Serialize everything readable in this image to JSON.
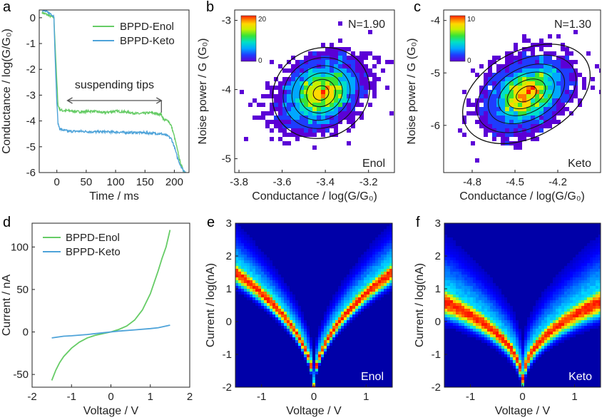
{
  "colors": {
    "enol": "#66cc66",
    "keto": "#4ea3d9",
    "axis": "#222222",
    "bracket": "#555555",
    "map_background": "#0000b4",
    "map_ridge": "#ff1a00",
    "heatmap_scale": [
      "#5b00d6",
      "#1f3cff",
      "#00a8ff",
      "#00e0c8",
      "#36e436",
      "#c8f000",
      "#ffd800",
      "#ff7a00",
      "#ff1e00"
    ]
  },
  "panels": {
    "a": {
      "letter": "a"
    },
    "b": {
      "letter": "b"
    },
    "c": {
      "letter": "c"
    },
    "d": {
      "letter": "d"
    },
    "e": {
      "letter": "e"
    },
    "f": {
      "letter": "f"
    }
  },
  "chart_data": [
    {
      "panel": "a",
      "type": "line",
      "xlabel": "Time / ms",
      "ylabel": "Conductance / log(G/G₀)",
      "xlim": [
        -30,
        225
      ],
      "ylim": [
        -6,
        0.3
      ],
      "xticks": [
        0,
        50,
        100,
        150,
        200
      ],
      "yticks": [
        0,
        -1,
        -2,
        -3,
        -4,
        -5,
        -6
      ],
      "legend_position": "top-right",
      "annotation": "suspending tips",
      "annotation_span": [
        18,
        178
      ],
      "series": [
        {
          "name": "BPPD-Enol",
          "x": [
            -25,
            -20,
            -10,
            -5,
            -3,
            0,
            2,
            5,
            10,
            20,
            40,
            60,
            80,
            100,
            120,
            140,
            160,
            178,
            182,
            190,
            195,
            200,
            205,
            210,
            215,
            220
          ],
          "y": [
            0.2,
            0.15,
            0.05,
            0.0,
            -1.0,
            -2.5,
            -3.4,
            -3.55,
            -3.6,
            -3.6,
            -3.65,
            -3.62,
            -3.68,
            -3.62,
            -3.66,
            -3.72,
            -3.68,
            -3.75,
            -3.95,
            -4.0,
            -4.2,
            -4.6,
            -5.1,
            -5.6,
            -5.9,
            -6.0
          ]
        },
        {
          "name": "BPPD-Keto",
          "x": [
            -25,
            -20,
            -10,
            -5,
            -3,
            0,
            2,
            5,
            10,
            20,
            40,
            60,
            80,
            100,
            120,
            140,
            160,
            178,
            185,
            190,
            195,
            200,
            205,
            210,
            215,
            220
          ],
          "y": [
            0.3,
            0.25,
            0.15,
            0.05,
            -1.5,
            -3.3,
            -4.1,
            -4.3,
            -4.35,
            -4.4,
            -4.4,
            -4.42,
            -4.42,
            -4.43,
            -4.45,
            -4.45,
            -4.47,
            -4.5,
            -4.55,
            -4.6,
            -4.7,
            -5.0,
            -5.4,
            -5.7,
            -5.9,
            -6.0
          ]
        }
      ]
    },
    {
      "panel": "b",
      "type": "heatmap",
      "xlabel": "Conductance / log(G/G₀)",
      "ylabel": "Noise power / G (G₀)",
      "xlim": [
        -3.82,
        -3.08
      ],
      "ylim": [
        -5.2,
        -2.85
      ],
      "xticks": [
        -3.8,
        -3.6,
        -3.4,
        -3.2
      ],
      "yticks": [
        -3,
        -4,
        -5
      ],
      "colorbar_range": [
        0,
        20
      ],
      "center": [
        -3.42,
        -4.05
      ],
      "spread": [
        0.09,
        0.22
      ],
      "ellipse_radii": [
        0.23,
        0.64
      ],
      "annotation": "N=1.90",
      "label": "Enol"
    },
    {
      "panel": "c",
      "type": "heatmap",
      "xlabel": "Conductance / log(G/G₀)",
      "ylabel": "Noise power / G (G₀)",
      "xlim": [
        -5.0,
        -3.9
      ],
      "ylim": [
        -6.9,
        -3.8
      ],
      "xticks": [
        -4.8,
        -4.5,
        -4.2
      ],
      "yticks": [
        -4,
        -5,
        -6
      ],
      "colorbar_range": [
        0,
        10
      ],
      "center": [
        -4.42,
        -5.4
      ],
      "spread": [
        0.13,
        0.3
      ],
      "ellipse_radii": [
        0.48,
        0.82
      ],
      "annotation": "N=1.30",
      "label": "Keto"
    },
    {
      "panel": "d",
      "type": "line",
      "xlabel": "Voltage / V",
      "ylabel": "Current / nA",
      "xlim": [
        -2,
        2
      ],
      "ylim": [
        -65,
        128
      ],
      "xticks": [
        -2,
        -1,
        0,
        1,
        2
      ],
      "yticks": [
        100,
        50,
        0,
        -50
      ],
      "legend_position": "top-left",
      "series": [
        {
          "name": "BPPD-Enol",
          "x": [
            -1.5,
            -1.4,
            -1.3,
            -1.2,
            -1.0,
            -0.8,
            -0.6,
            -0.4,
            -0.2,
            0.0,
            0.2,
            0.4,
            0.6,
            0.8,
            1.0,
            1.2,
            1.3,
            1.4,
            1.45,
            1.5
          ],
          "y": [
            -57,
            -45,
            -36,
            -29,
            -19,
            -12,
            -7,
            -4,
            -2,
            0,
            3,
            7,
            14,
            26,
            45,
            72,
            87,
            100,
            110,
            120
          ]
        },
        {
          "name": "BPPD-Keto",
          "x": [
            -1.5,
            -1.2,
            -1.0,
            -0.6,
            -0.2,
            0.0,
            0.2,
            0.6,
            1.0,
            1.2,
            1.5
          ],
          "y": [
            -7,
            -5,
            -4.5,
            -3,
            -1,
            0,
            1,
            2.5,
            4,
            5,
            8
          ]
        }
      ]
    },
    {
      "panel": "e",
      "type": "heatmap",
      "xlabel": "Voltage / V",
      "ylabel": "Current / log(nA)",
      "xlim": [
        -1.5,
        1.5
      ],
      "ylim": [
        -2,
        3
      ],
      "xticks": [
        -1,
        0,
        1
      ],
      "yticks": [
        3,
        2,
        1,
        0,
        -1,
        -2
      ],
      "ridge_at_max_voltage": 1.5,
      "ridge_exponent": 0.5,
      "label": "Enol"
    },
    {
      "panel": "f",
      "type": "heatmap",
      "xlabel": "Voltage / V",
      "ylabel": "Current / log(nA)",
      "xlim": [
        -1.5,
        1.5
      ],
      "ylim": [
        -2,
        3
      ],
      "xticks": [
        -1,
        0,
        1
      ],
      "yticks": [
        3,
        2,
        1,
        0,
        -1,
        -2
      ],
      "ridge_at_max_voltage": 0.6,
      "ridge_exponent": 0.42,
      "label": "Keto"
    }
  ]
}
